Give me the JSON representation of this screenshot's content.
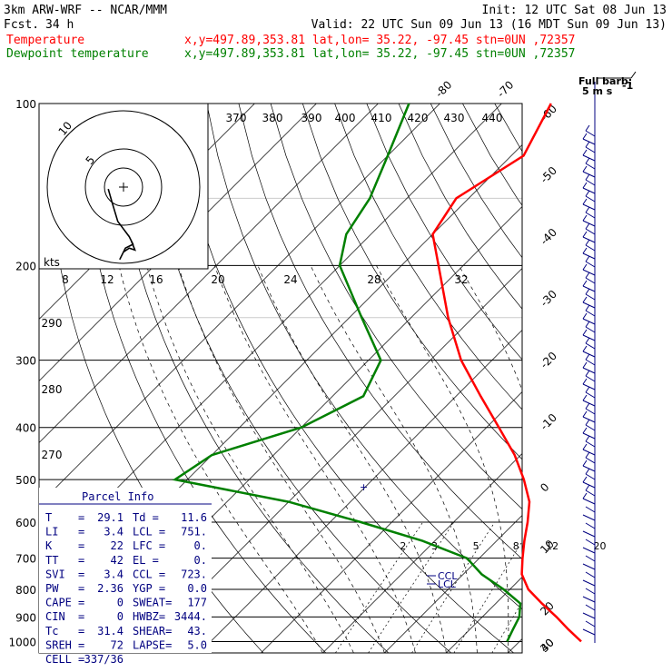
{
  "header": {
    "model": "3km ARW-WRF -- NCAR/MMM",
    "init": "Init: 12 UTC Sat 08 Jun 13",
    "fcst_label": "Fcst.",
    "fcst_value": "34 h",
    "valid": "Valid: 22 UTC Sun 09 Jun 13 (16 MDT Sun 09 Jun 13)",
    "temp_label": "Temperature",
    "dew_label": "Dewpoint temperature",
    "loc_line": "x,y=497.89,353.81    lat,lon= 35.22, -97.45   stn=0UN ,72357"
  },
  "colors": {
    "temperature": "#ff0000",
    "dewpoint": "#008000",
    "barb": "#000080",
    "parcel": "#000080"
  },
  "chart_data": {
    "type": "line",
    "pressure_levels": [
      "100",
      "200",
      "300",
      "400",
      "500",
      "600",
      "700",
      "800",
      "900",
      "1000"
    ],
    "isotherm_labels": [
      "-80",
      "-70",
      "-60",
      "-50",
      "-40",
      "-30",
      "-20",
      "-10",
      "0",
      "10",
      "20",
      "30",
      "40"
    ],
    "theta_labels": [
      "370",
      "380",
      "390",
      "400",
      "410",
      "420",
      "430",
      "440",
      "290",
      "280",
      "270"
    ],
    "mixing_ratio_labels": [
      "2",
      "3",
      "5",
      "8",
      "12",
      "20"
    ],
    "hodograph_speed_labels": [
      "8",
      "12",
      "16",
      "20",
      "24",
      "28",
      "32"
    ],
    "hodograph_rings": [
      "5",
      "10"
    ],
    "hodograph_unit": "kts",
    "barb_legend": "Full barb:",
    "barb_legend_unit": "5 m s",
    "ccl_label": "CCL",
    "lcl_label": "LCL",
    "series": [
      {
        "name": "Temperature",
        "points": [
          [
            1000,
            30.0
          ],
          [
            950,
            26.0
          ],
          [
            900,
            22.0
          ],
          [
            850,
            17.5
          ],
          [
            800,
            13.0
          ],
          [
            750,
            9.5
          ],
          [
            700,
            7.0
          ],
          [
            650,
            4.5
          ],
          [
            600,
            2.0
          ],
          [
            550,
            -1.0
          ],
          [
            500,
            -5.5
          ],
          [
            450,
            -11.0
          ],
          [
            400,
            -18.0
          ],
          [
            350,
            -26.0
          ],
          [
            300,
            -35.0
          ],
          [
            250,
            -44.0
          ],
          [
            200,
            -54.0
          ],
          [
            175,
            -60.0
          ],
          [
            150,
            -62.0
          ],
          [
            125,
            -58.0
          ],
          [
            100,
            -62.0
          ]
        ]
      },
      {
        "name": "Dewpoint temperature",
        "points": [
          [
            1000,
            18.0
          ],
          [
            950,
            17.0
          ],
          [
            900,
            16.0
          ],
          [
            850,
            14.0
          ],
          [
            800,
            9.0
          ],
          [
            750,
            3.0
          ],
          [
            700,
            -2.0
          ],
          [
            650,
            -12.0
          ],
          [
            600,
            -25.0
          ],
          [
            550,
            -40.0
          ],
          [
            500,
            -62.0
          ],
          [
            450,
            -60.0
          ],
          [
            400,
            -50.0
          ],
          [
            350,
            -45.0
          ],
          [
            300,
            -48.0
          ],
          [
            250,
            -58.0
          ],
          [
            200,
            -70.0
          ],
          [
            175,
            -74.0
          ],
          [
            150,
            -76.0
          ],
          [
            125,
            -80.0
          ],
          [
            100,
            -85.0
          ]
        ]
      }
    ],
    "hodograph_path": [
      [
        -4,
        0.5
      ],
      [
        -3,
        4
      ],
      [
        -1.5,
        9
      ],
      [
        0,
        11
      ],
      [
        1.5,
        13
      ],
      [
        2.5,
        15
      ],
      [
        0.5,
        16
      ],
      [
        -1,
        19
      ],
      [
        0,
        17
      ],
      [
        1.5,
        16
      ],
      [
        3,
        16.5
      ],
      [
        2,
        14
      ]
    ]
  },
  "parcel_info": {
    "title": "Parcel Info",
    "rows": [
      [
        "T",
        "=",
        "29.1",
        "Td =",
        "11.6"
      ],
      [
        "LI",
        "=",
        "3.4",
        "LCL =",
        "751."
      ],
      [
        "K",
        "=",
        "22",
        "LFC =",
        "0."
      ],
      [
        "TT",
        "=",
        "42",
        "EL =",
        "0."
      ],
      [
        "SVI",
        "=",
        "3.4",
        "CCL =",
        "723."
      ],
      [
        "PW",
        "=",
        "2.36",
        "YGP =",
        "0.0"
      ],
      [
        "CAPE",
        "=",
        "0",
        "SWEAT=",
        "177"
      ],
      [
        "CIN",
        "=",
        "0",
        "HWBZ=",
        "3444."
      ],
      [
        "Tc",
        "=",
        "31.4",
        "SHEAR=",
        "43."
      ],
      [
        "SREH",
        "=",
        "72",
        "LAPSE=",
        "5.0"
      ],
      [
        "CELL",
        "=",
        "337/36",
        "",
        ""
      ]
    ]
  }
}
